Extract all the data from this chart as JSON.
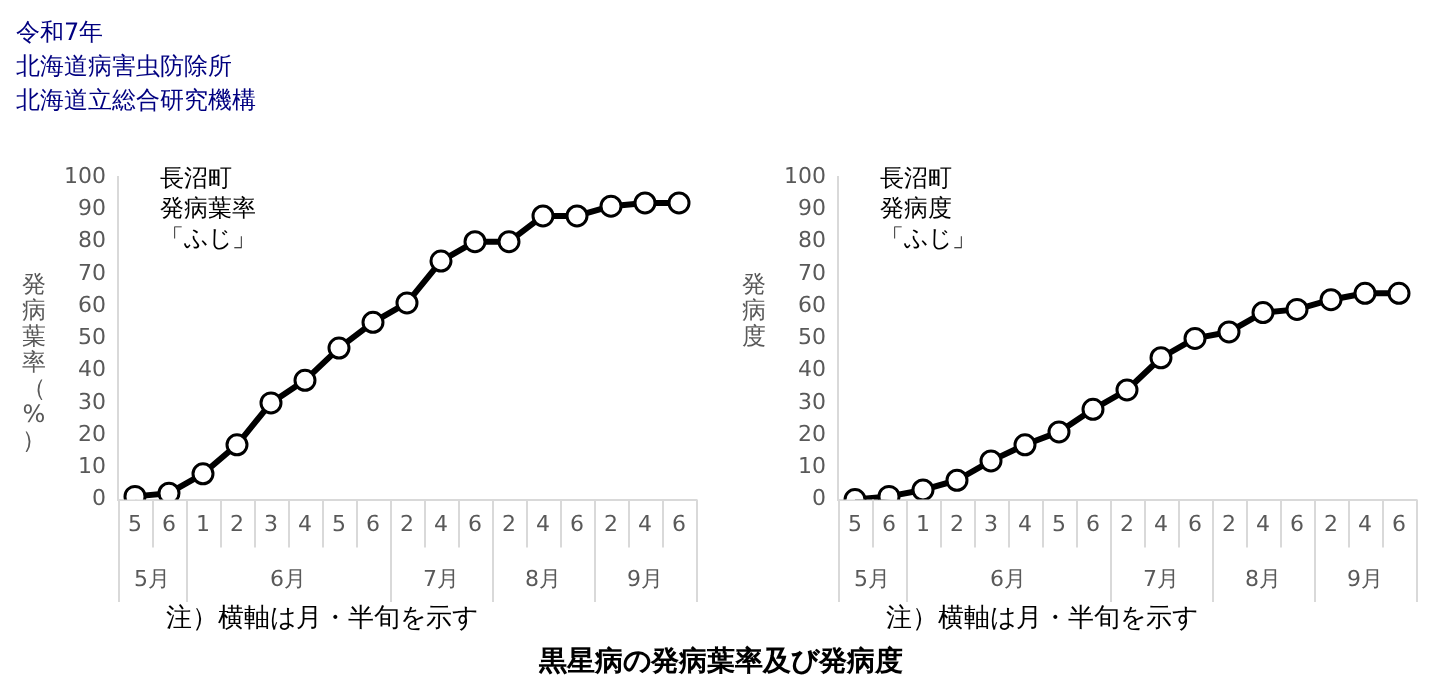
{
  "chart_data": [
    {
      "type": "line",
      "title": "長沼町",
      "subtitle": "発病葉率",
      "ylabel": "発病葉率（%）",
      "categories": [
        "5",
        "6",
        "1",
        "2",
        "3",
        "4",
        "5",
        "6",
        "2",
        "4",
        "6",
        "2",
        "4",
        "6",
        "2",
        "4",
        "6"
      ],
      "series": [
        {
          "color": "#000000",
          "values": [
            1,
            2,
            8,
            17,
            30,
            37,
            47,
            55,
            61,
            74,
            80,
            80,
            88,
            88,
            91,
            92,
            92
          ]
        }
      ],
      "ylim": [
        0,
        100
      ],
      "yticks": [
        0,
        10,
        20,
        30,
        40,
        50,
        60,
        70,
        80,
        90,
        100
      ],
      "grid": false,
      "legend": false,
      "marker": "circle",
      "line_style": "solid",
      "annotations": [
        "「ふじ」",
        "5月",
        "6月",
        "7月",
        "8月",
        "9月",
        "注）横軸は月・半旬を示す"
      ]
    },
    {
      "type": "line",
      "title": "長沼町",
      "subtitle": "発病度",
      "ylabel": "発病度",
      "categories": [
        "5",
        "6",
        "1",
        "2",
        "3",
        "4",
        "5",
        "6",
        "2",
        "4",
        "6",
        "2",
        "4",
        "6",
        "2",
        "4",
        "6"
      ],
      "series": [
        {
          "color": "#000000",
          "values": [
            0,
            1,
            3,
            6,
            12,
            17,
            21,
            28,
            34,
            44,
            50,
            52,
            58,
            59,
            62,
            64,
            64
          ]
        }
      ],
      "ylim": [
        0,
        100
      ],
      "yticks": [
        0,
        10,
        20,
        30,
        40,
        50,
        60,
        70,
        80,
        90,
        100
      ],
      "grid": false,
      "legend": false,
      "marker": "circle",
      "line_style": "solid",
      "annotations": [
        "「ふじ」",
        "5月",
        "6月",
        "7月",
        "8月",
        "9月",
        "注）横軸は月・半旬を示す"
      ]
    },
    {
      "type": "other",
      "title": "黒星病の発病葉率及び発病度",
      "annotations": [
        "令和7年",
        "北海道病害虫防除所",
        "北海道立総合研究機構"
      ]
    }
  ]
}
